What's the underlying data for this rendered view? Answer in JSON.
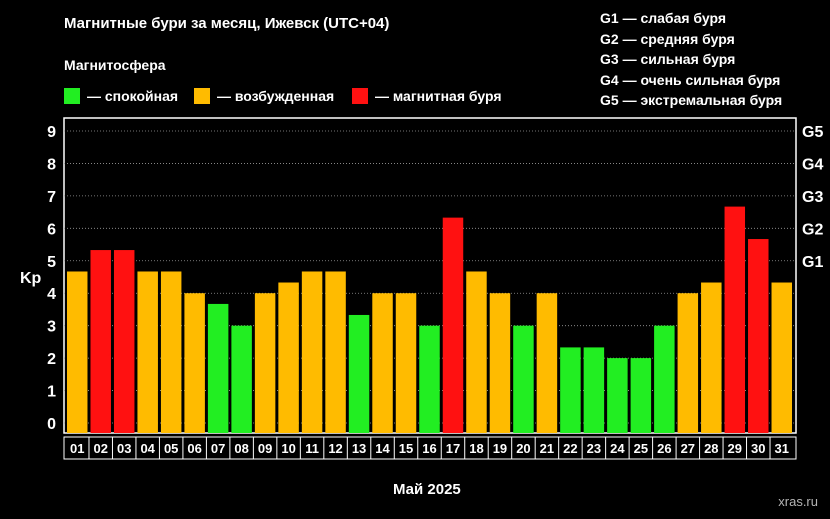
{
  "header": {
    "title": "Магнитные бури за месяц, Ижевск (UTC+04)",
    "subtitle": "Магнитосфера"
  },
  "legend": [
    {
      "label": "— спокойная",
      "color": "#22ee22"
    },
    {
      "label": "— возбужденная",
      "color": "#ffbb00"
    },
    {
      "label": "— магнитная буря",
      "color": "#ff1111"
    }
  ],
  "g_legend": [
    "G1 — слабая буря",
    "G2 — средняя буря",
    "G3 — сильная буря",
    "G4 — очень сильная буря",
    "G5 — экстремальная буря"
  ],
  "footer": "xras.ru",
  "chart_data": {
    "type": "bar",
    "title": "Магнитные бури за месяц, Ижевск (UTC+04)",
    "xlabel": "Май 2025",
    "ylabel": "Kp",
    "ylim": [
      0,
      9
    ],
    "yticks": [
      "0",
      "1",
      "2",
      "3",
      "4",
      "5",
      "6",
      "7",
      "8",
      "9"
    ],
    "right_ticks": [
      {
        "label": "G1",
        "value": 5
      },
      {
        "label": "G2",
        "value": 6
      },
      {
        "label": "G3",
        "value": 7
      },
      {
        "label": "G4",
        "value": 8
      },
      {
        "label": "G5",
        "value": 9
      }
    ],
    "categories": [
      "01",
      "02",
      "03",
      "04",
      "05",
      "06",
      "07",
      "08",
      "09",
      "10",
      "11",
      "12",
      "13",
      "14",
      "15",
      "16",
      "17",
      "18",
      "19",
      "20",
      "21",
      "22",
      "23",
      "24",
      "25",
      "26",
      "27",
      "28",
      "29",
      "30",
      "31"
    ],
    "values": [
      4.67,
      5.33,
      5.33,
      4.67,
      4.67,
      4.0,
      3.67,
      3.0,
      4.0,
      4.33,
      4.67,
      4.67,
      3.33,
      4.0,
      4.0,
      3.0,
      6.33,
      4.67,
      4.0,
      3.0,
      4.0,
      2.33,
      2.33,
      2.0,
      2.0,
      3.0,
      4.0,
      4.33,
      6.67,
      5.67,
      4.33
    ],
    "colors": {
      "quiet": "#22ee22",
      "active": "#ffbb00",
      "storm": "#ff1111"
    },
    "grid": true
  }
}
